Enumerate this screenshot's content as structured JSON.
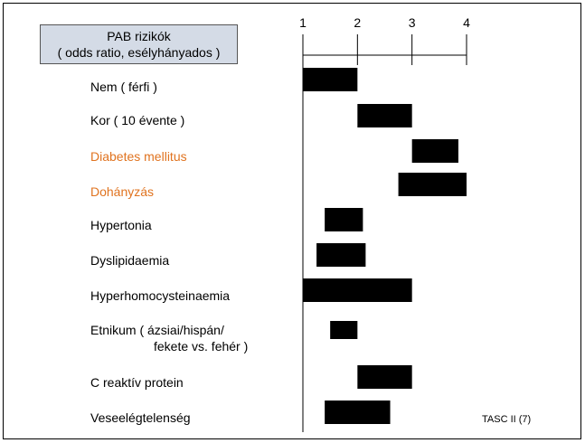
{
  "title": {
    "line1": "PAB rizikók",
    "line2": "( odds ratio, esélyhányados )"
  },
  "source_note": "TASC II (7)",
  "colors": {
    "bar": "#000000",
    "highlight_text": "#e0731f",
    "title_box_bg": "#d4dbe6"
  },
  "chart_data": {
    "type": "bar",
    "orientation": "horizontal-range",
    "xlim": [
      1,
      4
    ],
    "xticks": [
      "1",
      "2",
      "3",
      "4"
    ],
    "categories": [
      {
        "label": "Nem ( férfi )",
        "highlight": false
      },
      {
        "label": "Kor ( 10 évente )",
        "highlight": false
      },
      {
        "label": "Diabetes mellitus",
        "highlight": true
      },
      {
        "label": "Dohányzás",
        "highlight": true
      },
      {
        "label": "Hypertonia",
        "highlight": false
      },
      {
        "label": "Dyslipidaemia",
        "highlight": false
      },
      {
        "label": "Hyperhomocysteinaemia",
        "highlight": false
      },
      {
        "label": "Etnikum ( ázsiai/hispán/",
        "label2": "fekete vs. fehér )",
        "highlight": false
      },
      {
        "label": "C reaktív protein",
        "highlight": false
      },
      {
        "label": "Veseelégtelenség",
        "highlight": false
      }
    ],
    "ranges": [
      [
        1.0,
        2.0
      ],
      [
        2.0,
        3.0
      ],
      [
        3.0,
        3.85
      ],
      [
        2.75,
        4.0
      ],
      [
        1.4,
        2.1
      ],
      [
        1.25,
        2.15
      ],
      [
        1.0,
        3.0
      ],
      [
        1.5,
        2.0
      ],
      [
        2.0,
        3.0
      ],
      [
        1.4,
        2.6
      ]
    ],
    "grid": false
  }
}
